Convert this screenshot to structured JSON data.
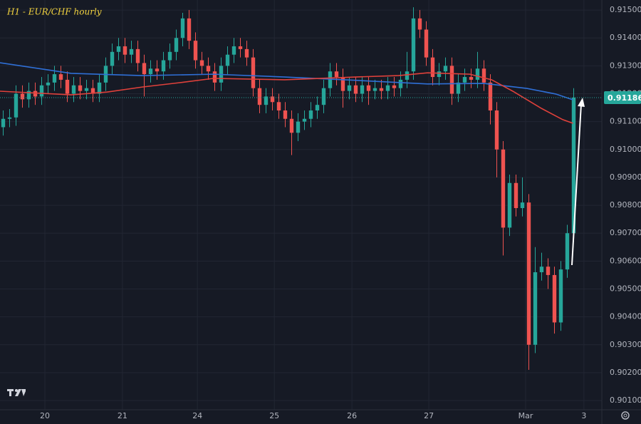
{
  "chart_data": {
    "type": "candlestick",
    "title": "H1 - EUR/CHF hourly",
    "up_color": "#26a69a",
    "down_color": "#ef5350",
    "open": [
      0.9108,
      0.9111,
      0.91115,
      0.912,
      0.9118,
      0.9121,
      0.9119,
      0.9123,
      0.9124,
      0.9127,
      0.9125,
      0.912,
      0.9123,
      0.9121,
      0.9122,
      0.912,
      0.9124,
      0.913,
      0.9135,
      0.9137,
      0.9134,
      0.9136,
      0.9131,
      0.9127,
      0.9129,
      0.9128,
      0.9132,
      0.9135,
      0.914,
      0.9147,
      0.9139,
      0.9132,
      0.913,
      0.9128,
      0.9124,
      0.913,
      0.9134,
      0.9137,
      0.9136,
      0.9133,
      0.9122,
      0.9116,
      0.9119,
      0.9117,
      0.9114,
      0.9111,
      0.9106,
      0.911,
      0.9111,
      0.9114,
      0.9116,
      0.9122,
      0.9128,
      0.9126,
      0.9121,
      0.9123,
      0.912,
      0.9123,
      0.9121,
      0.9122,
      0.9121,
      0.9123,
      0.9122,
      0.9125,
      0.9128,
      0.9147,
      0.9143,
      0.9133,
      0.9126,
      0.9128,
      0.913,
      0.912,
      0.9124,
      0.9126,
      0.9125,
      0.9129,
      0.9124,
      0.9114,
      0.91,
      0.9072,
      0.9088,
      0.9079,
      0.9081,
      0.903,
      0.9056,
      0.9058,
      0.9055,
      0.9038,
      0.9057,
      0.907
    ],
    "high": [
      0.9114,
      0.91145,
      0.9123,
      0.9123,
      0.9124,
      0.9124,
      0.9126,
      0.9127,
      0.913,
      0.913,
      0.9128,
      0.9126,
      0.9126,
      0.9125,
      0.9125,
      0.9127,
      0.9133,
      0.9138,
      0.914,
      0.914,
      0.9139,
      0.9139,
      0.9134,
      0.9132,
      0.9132,
      0.9135,
      0.9138,
      0.9143,
      0.9149,
      0.915,
      0.9142,
      0.9135,
      0.9133,
      0.9131,
      0.9133,
      0.9137,
      0.914,
      0.914,
      0.9139,
      0.9136,
      0.9125,
      0.9122,
      0.9122,
      0.912,
      0.9117,
      0.9114,
      0.9113,
      0.9114,
      0.9117,
      0.9119,
      0.9125,
      0.9131,
      0.9131,
      0.9129,
      0.9126,
      0.9126,
      0.9126,
      0.9126,
      0.9125,
      0.9125,
      0.9126,
      0.9126,
      0.9128,
      0.9135,
      0.9151,
      0.915,
      0.9146,
      0.9136,
      0.9131,
      0.9133,
      0.9133,
      0.9127,
      0.9129,
      0.9129,
      0.9135,
      0.9132,
      0.9127,
      0.9117,
      0.9103,
      0.9091,
      0.9091,
      0.909,
      0.9084,
      0.9065,
      0.9063,
      0.9061,
      0.9058,
      0.906,
      0.9073,
      0.9122
    ],
    "low": [
      0.9105,
      0.9108,
      0.91085,
      0.9115,
      0.9115,
      0.9116,
      0.9116,
      0.912,
      0.9121,
      0.9122,
      0.9117,
      0.9117,
      0.9118,
      0.9118,
      0.9117,
      0.9117,
      0.9121,
      0.9127,
      0.9132,
      0.9131,
      0.9131,
      0.9128,
      0.9119,
      0.9124,
      0.9125,
      0.9125,
      0.9129,
      0.9132,
      0.9137,
      0.9136,
      0.9129,
      0.9127,
      0.9125,
      0.9121,
      0.9121,
      0.9127,
      0.9131,
      0.9133,
      0.913,
      0.9119,
      0.9113,
      0.9113,
      0.9114,
      0.9111,
      0.9108,
      0.9098,
      0.9103,
      0.9107,
      0.9108,
      0.9111,
      0.9113,
      0.9119,
      0.9123,
      0.9115,
      0.9118,
      0.9117,
      0.9117,
      0.9116,
      0.9118,
      0.9118,
      0.9118,
      0.9119,
      0.9119,
      0.9122,
      0.9125,
      0.914,
      0.913,
      0.9123,
      0.9123,
      0.9125,
      0.9116,
      0.9117,
      0.9121,
      0.9122,
      0.9122,
      0.9121,
      0.9109,
      0.909,
      0.9062,
      0.9069,
      0.9076,
      0.9076,
      0.9021,
      0.9027,
      0.9053,
      0.905,
      0.9034,
      0.9035,
      0.9054,
      0.9067
    ],
    "close": [
      0.9111,
      0.91115,
      0.912,
      0.9118,
      0.9121,
      0.9119,
      0.9123,
      0.9124,
      0.9127,
      0.9125,
      0.912,
      0.9123,
      0.9121,
      0.9122,
      0.912,
      0.9124,
      0.913,
      0.9135,
      0.9137,
      0.9134,
      0.9136,
      0.9131,
      0.9127,
      0.9129,
      0.9128,
      0.9132,
      0.9135,
      0.914,
      0.9147,
      0.9139,
      0.9132,
      0.913,
      0.9128,
      0.9124,
      0.913,
      0.9134,
      0.9137,
      0.9136,
      0.9133,
      0.9122,
      0.9116,
      0.9119,
      0.9117,
      0.9114,
      0.9111,
      0.9106,
      0.911,
      0.9111,
      0.9114,
      0.9116,
      0.9122,
      0.9128,
      0.9126,
      0.9121,
      0.9123,
      0.912,
      0.9123,
      0.9121,
      0.9122,
      0.9121,
      0.9123,
      0.9122,
      0.9125,
      0.9128,
      0.9147,
      0.9143,
      0.9133,
      0.9126,
      0.9128,
      0.913,
      0.912,
      0.9124,
      0.9126,
      0.9125,
      0.9129,
      0.9124,
      0.9114,
      0.91,
      0.9072,
      0.9088,
      0.9079,
      0.9081,
      0.903,
      0.9056,
      0.9058,
      0.9055,
      0.9038,
      0.9057,
      0.907,
      0.91186
    ],
    "series": [
      {
        "color": "#2f6fd6",
        "x": [
          -0.5,
          10.6,
          21.7,
          32.8,
          43.9,
          55,
          66.2,
          75,
          81.7,
          86.2,
          88.9
        ],
        "values": [
          0.91311,
          0.91273,
          0.91265,
          0.9127,
          0.9126,
          0.91248,
          0.91235,
          0.91237,
          0.91219,
          0.91199,
          0.91178
        ]
      },
      {
        "color": "#e0413b",
        "x": [
          -0.5,
          10.6,
          16.2,
          21.7,
          27.3,
          32.8,
          43.9,
          55,
          61.7,
          66.2,
          72.8,
          76.2,
          79.5,
          84,
          87.3,
          88.9
        ],
        "values": [
          0.91209,
          0.91196,
          0.91206,
          0.91224,
          0.91239,
          0.91255,
          0.9125,
          0.9126,
          0.91265,
          0.91275,
          0.9127,
          0.9125,
          0.91209,
          0.91147,
          0.91107,
          0.91094
        ]
      }
    ],
    "last_price": 0.91186,
    "last_price_color": "#26a69a",
    "xlim": [
      -0.5,
      93.39
    ],
    "xticks": [
      {
        "value": 6.5,
        "label": "20"
      },
      {
        "value": 18.6,
        "label": "21"
      },
      {
        "value": 30.3,
        "label": "24"
      },
      {
        "value": 42.3,
        "label": "25"
      },
      {
        "value": 54.4,
        "label": "26"
      },
      {
        "value": 66.4,
        "label": "27"
      },
      {
        "value": 81.5,
        "label": "Mar"
      },
      {
        "value": 90.6,
        "label": "3"
      }
    ],
    "ylim": [
      0.90067,
      0.91536
    ],
    "yticks": [
      {
        "value": 0.901,
        "label": "0.90100"
      },
      {
        "value": 0.902,
        "label": "0.90200"
      },
      {
        "value": 0.903,
        "label": "0.90300"
      },
      {
        "value": 0.904,
        "label": "0.90400"
      },
      {
        "value": 0.905,
        "label": "0.90500"
      },
      {
        "value": 0.906,
        "label": "0.90600"
      },
      {
        "value": 0.907,
        "label": "0.90700"
      },
      {
        "value": 0.908,
        "label": "0.90800"
      },
      {
        "value": 0.909,
        "label": "0.90900"
      },
      {
        "value": 0.91,
        "label": "0.91000"
      },
      {
        "value": 0.911,
        "label": "0.91100"
      },
      {
        "value": 0.912,
        "label": "0.91200"
      },
      {
        "value": 0.913,
        "label": "0.91300"
      },
      {
        "value": 0.914,
        "label": "0.91400"
      },
      {
        "value": 0.915,
        "label": "0.91500"
      }
    ],
    "grid": true
  }
}
